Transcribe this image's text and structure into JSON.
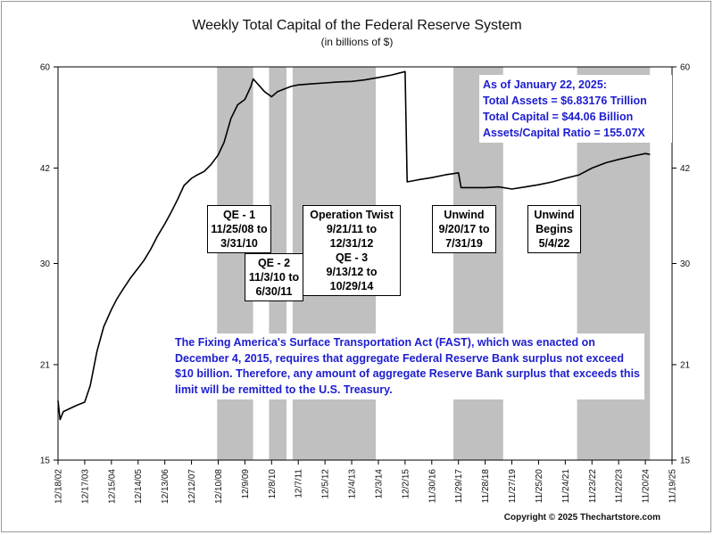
{
  "title": "Weekly Total Capital of the Federal Reserve System",
  "subtitle": "(in billions of $)",
  "copyright": "Copyright © 2025 Thechartstore.com",
  "asof_box": {
    "line1": "As of January 22, 2025:",
    "line2": "Total Assets = $6.83176 Trillion",
    "line3": "Total Capital  = $44.06 Billion",
    "line4": "Assets/Capital Ratio = 155.07X"
  },
  "fast_note": "The Fixing America's Surface Transportation Act (FAST), which was enacted on December 4, 2015, requires that aggregate Federal Reserve Bank surplus not exceed $10 billion.  Therefore, any amount of aggregate Reserve Bank surplus that exceeds this limit will be remitted to the U.S. Treasury.",
  "annotations": {
    "qe1": [
      "QE - 1",
      "11/25/08 to",
      "3/31/10"
    ],
    "qe2": [
      "QE - 2",
      "11/3/10 to",
      "6/30/11"
    ],
    "twist": [
      "Operation Twist",
      "9/21/11 to",
      "12/31/12",
      "QE - 3",
      "9/13/12 to",
      "10/29/14"
    ],
    "unwind1": [
      "Unwind",
      "9/20/17 to",
      "7/31/19"
    ],
    "unwind2": [
      "Unwind",
      "Begins",
      "5/4/22"
    ]
  },
  "colors": {
    "shade": "#c0c0c0",
    "line": "#000000",
    "note_text": "#1d1dd0"
  },
  "chart_data": {
    "type": "line",
    "title": "Weekly Total Capital of the Federal Reserve System",
    "subtitle": "(in billions of $)",
    "ylabel": "",
    "xlabel": "",
    "y_scale": "log",
    "ylim": [
      15,
      60
    ],
    "yticks": [
      15,
      21,
      30,
      42,
      60
    ],
    "xlim": [
      "2002-12-18",
      "2025-11-19"
    ],
    "xticks": [
      "12/18/02",
      "12/17/03",
      "12/15/04",
      "12/14/05",
      "12/13/06",
      "12/12/07",
      "12/10/08",
      "12/9/09",
      "12/8/10",
      "12/7/11",
      "12/5/12",
      "12/4/13",
      "12/3/14",
      "12/2/15",
      "11/30/16",
      "11/29/17",
      "11/28/18",
      "11/27/19",
      "11/25/20",
      "11/24/21",
      "11/23/22",
      "11/22/23",
      "11/20/24",
      "11/19/25"
    ],
    "shaded_periods": [
      {
        "label": "QE - 1",
        "start": "2008-11-25",
        "end": "2010-03-31"
      },
      {
        "label": "QE - 2",
        "start": "2010-11-03",
        "end": "2011-06-30"
      },
      {
        "label": "Operation Twist / QE - 3",
        "start": "2011-09-21",
        "end": "2014-10-29"
      },
      {
        "label": "Unwind",
        "start": "2017-09-20",
        "end": "2019-07-31"
      },
      {
        "label": "Unwind",
        "start": "2022-05-04",
        "end": "2025-01-22"
      }
    ],
    "series": [
      {
        "points": [
          [
            "2002-12-18",
            18.5
          ],
          [
            "2003-01-15",
            17.3
          ],
          [
            "2003-03-01",
            17.8
          ],
          [
            "2003-06-01",
            18.0
          ],
          [
            "2003-09-01",
            18.2
          ],
          [
            "2003-12-17",
            18.4
          ],
          [
            "2004-03-01",
            19.5
          ],
          [
            "2004-06-01",
            22.0
          ],
          [
            "2004-09-01",
            24.0
          ],
          [
            "2004-12-15",
            25.5
          ],
          [
            "2005-03-01",
            26.5
          ],
          [
            "2005-06-01",
            27.5
          ],
          [
            "2005-09-01",
            28.5
          ],
          [
            "2005-12-14",
            29.5
          ],
          [
            "2006-03-01",
            30.3
          ],
          [
            "2006-06-01",
            31.5
          ],
          [
            "2006-09-01",
            33.0
          ],
          [
            "2006-12-13",
            34.5
          ],
          [
            "2007-03-01",
            35.8
          ],
          [
            "2007-06-01",
            37.5
          ],
          [
            "2007-09-01",
            39.5
          ],
          [
            "2007-12-12",
            40.5
          ],
          [
            "2008-03-01",
            41.0
          ],
          [
            "2008-06-01",
            41.5
          ],
          [
            "2008-09-01",
            42.5
          ],
          [
            "2008-12-10",
            44.0
          ],
          [
            "2009-03-01",
            46.0
          ],
          [
            "2009-06-01",
            50.0
          ],
          [
            "2009-09-01",
            52.5
          ],
          [
            "2009-12-09",
            53.5
          ],
          [
            "2010-03-01",
            56.0
          ],
          [
            "2010-04-01",
            57.5
          ],
          [
            "2010-06-01",
            56.5
          ],
          [
            "2010-09-01",
            55.0
          ],
          [
            "2010-12-08",
            54.0
          ],
          [
            "2011-03-01",
            55.0
          ],
          [
            "2011-06-01",
            55.5
          ],
          [
            "2011-09-01",
            56.0
          ],
          [
            "2011-12-07",
            56.3
          ],
          [
            "2012-06-01",
            56.5
          ],
          [
            "2012-12-05",
            56.7
          ],
          [
            "2013-06-01",
            56.9
          ],
          [
            "2013-12-04",
            57.0
          ],
          [
            "2014-06-01",
            57.3
          ],
          [
            "2014-12-03",
            57.8
          ],
          [
            "2015-06-01",
            58.3
          ],
          [
            "2015-12-02",
            59.0
          ],
          [
            "2015-12-30",
            40.0
          ],
          [
            "2016-06-01",
            40.3
          ],
          [
            "2016-11-30",
            40.6
          ],
          [
            "2017-06-01",
            41.0
          ],
          [
            "2017-11-29",
            41.3
          ],
          [
            "2018-01-03",
            39.2
          ],
          [
            "2018-06-01",
            39.2
          ],
          [
            "2018-11-28",
            39.2
          ],
          [
            "2019-06-01",
            39.3
          ],
          [
            "2019-11-27",
            39.0
          ],
          [
            "2020-06-01",
            39.3
          ],
          [
            "2020-11-25",
            39.6
          ],
          [
            "2021-06-01",
            40.0
          ],
          [
            "2021-11-24",
            40.5
          ],
          [
            "2022-06-01",
            41.0
          ],
          [
            "2022-11-23",
            42.0
          ],
          [
            "2023-06-01",
            42.8
          ],
          [
            "2023-11-22",
            43.3
          ],
          [
            "2024-06-01",
            43.8
          ],
          [
            "2024-11-20",
            44.2
          ],
          [
            "2025-01-22",
            44.06
          ]
        ]
      }
    ]
  }
}
